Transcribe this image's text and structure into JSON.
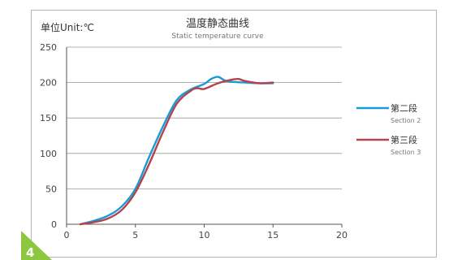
{
  "chart_data": {
    "type": "line",
    "title": "温度静态曲线",
    "subtitle": "Static temperature curve",
    "unit_label": "单位Unit:℃",
    "xlim": [
      0,
      20
    ],
    "ylim": [
      0,
      250
    ],
    "x_ticks": [
      0,
      5,
      10,
      15,
      20
    ],
    "y_ticks": [
      0,
      50,
      100,
      150,
      200,
      250
    ],
    "grid": "horizontal",
    "legend_position": "right",
    "series": [
      {
        "name": "第二段",
        "name_en": "Section 2",
        "color": "#1a9ad6",
        "x": [
          1,
          2,
          3,
          4,
          5,
          6,
          7,
          8,
          9,
          10,
          10.5,
          11,
          11.5,
          12,
          13,
          14,
          15
        ],
        "y": [
          0,
          5,
          12,
          25,
          50,
          95,
          138,
          175,
          190,
          198,
          205,
          208,
          203,
          201,
          200,
          199,
          199
        ]
      },
      {
        "name": "第三段",
        "name_en": "Section 3",
        "color": "#b3434c",
        "x": [
          1,
          2,
          3,
          4,
          5,
          6,
          7,
          8,
          9,
          9.5,
          10,
          11,
          12,
          12.5,
          13,
          14,
          15
        ],
        "y": [
          0,
          3,
          8,
          20,
          45,
          85,
          130,
          170,
          188,
          192,
          191,
          199,
          204,
          205,
          202,
          199,
          200
        ]
      }
    ]
  },
  "badge": {
    "label": "4",
    "color": "#8dc63f"
  }
}
